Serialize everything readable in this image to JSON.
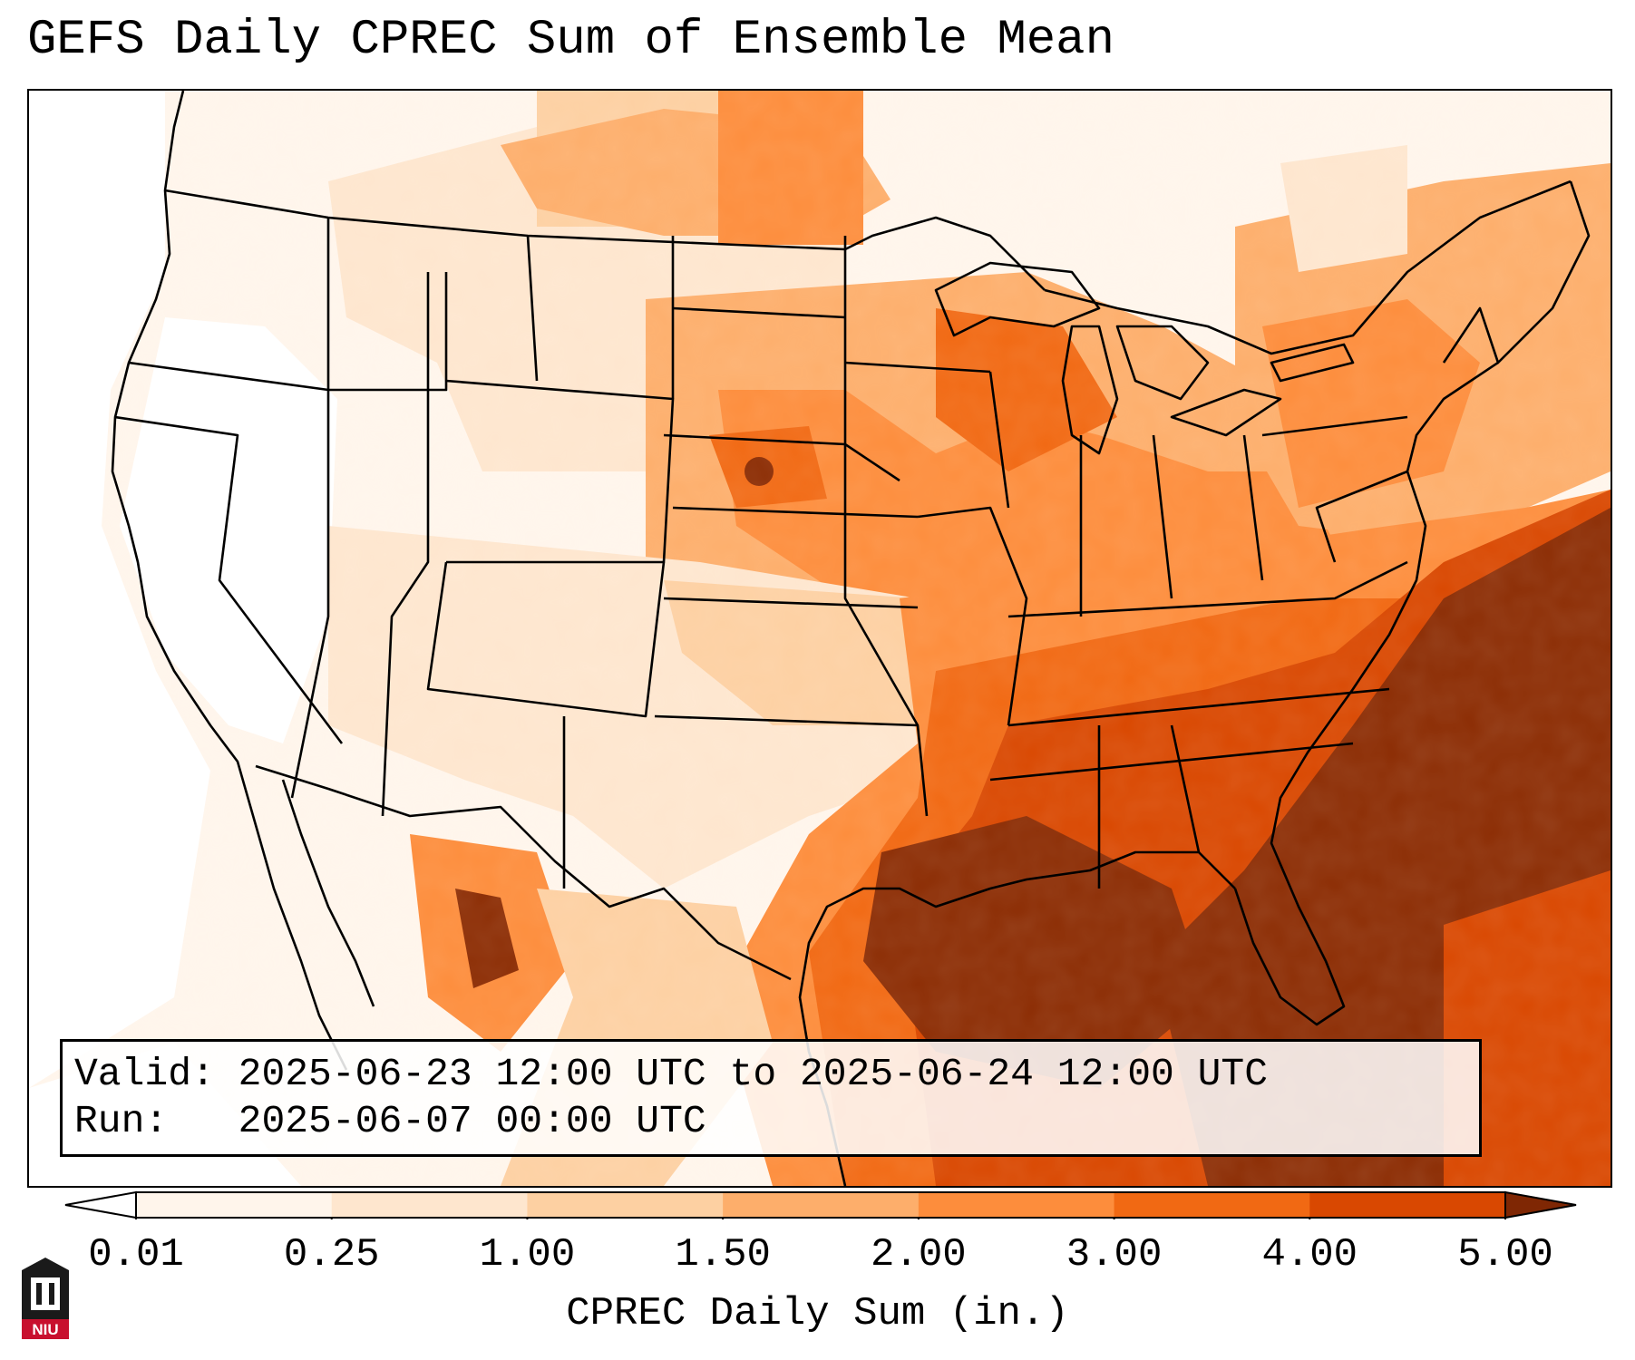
{
  "title": "GEFS Daily CPREC Sum of Ensemble Mean",
  "info": {
    "valid_label": "Valid:",
    "valid_value": "2025-06-23 12:00 UTC to 2025-06-24 12:00 UTC",
    "run_label": "Run:",
    "run_value": "2025-06-07 00:00 UTC"
  },
  "colorbar": {
    "label": "CPREC Daily Sum (in.)",
    "ticks": [
      "0.01",
      "0.25",
      "1.00",
      "1.50",
      "2.00",
      "3.00",
      "4.00",
      "5.00"
    ],
    "colors": [
      "#fff5eb",
      "#fee6ce",
      "#fdd0a2",
      "#fdae6b",
      "#fd8d3c",
      "#f16913",
      "#d94801",
      "#8c2d04"
    ],
    "under_color": "#ffffff",
    "over_color": "#7f2704",
    "extend": "both"
  },
  "map": {
    "region": "Contiguous United States",
    "variable": "CPREC daily sum",
    "boundaries": [
      "states",
      "coastlines",
      "countries"
    ]
  },
  "logo": {
    "text": "NIU",
    "color": "#c8102e"
  }
}
